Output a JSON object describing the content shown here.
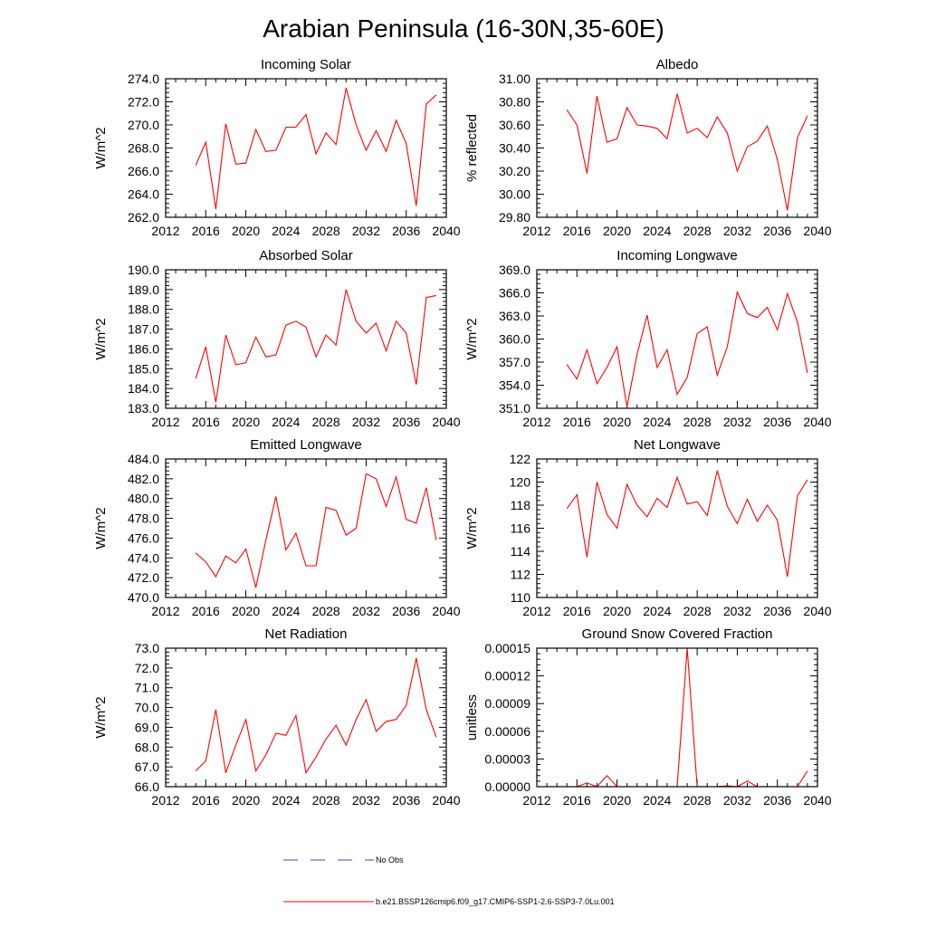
{
  "figure": {
    "title": "Arabian Peninsula (16-30N,35-60E)",
    "legend": [
      {
        "label": "No Obs",
        "color": "#4040c0",
        "dash": "dashed"
      },
      {
        "label": "b.e21.BSSP126cmip6.f09_g17.CMIP6-SSP1-2.6-SSP3-7.0Lu.001",
        "color": "#ff0000",
        "dash": "solid"
      }
    ]
  },
  "chart_data": [
    {
      "type": "line",
      "title": "Incoming Solar",
      "ylabel": "W/m^2",
      "xlim": [
        2012,
        2040
      ],
      "ylim": [
        262,
        274
      ],
      "xticks": [
        "2012",
        "2016",
        "2020",
        "2024",
        "2028",
        "2032",
        "2036",
        "2040"
      ],
      "yticks": [
        "262.0",
        "264.0",
        "266.0",
        "268.0",
        "270.0",
        "272.0",
        "274.0"
      ],
      "x": [
        2015,
        2016,
        2017,
        2018,
        2019,
        2020,
        2021,
        2022,
        2023,
        2024,
        2025,
        2026,
        2027,
        2028,
        2029,
        2030,
        2031,
        2032,
        2033,
        2034,
        2035,
        2036,
        2037,
        2038,
        2039
      ],
      "series": [
        {
          "color": "#ff0000",
          "values": [
            266.5,
            268.5,
            262.7,
            270.1,
            266.6,
            266.7,
            269.6,
            267.7,
            267.8,
            269.8,
            269.8,
            270.9,
            267.5,
            269.3,
            268.3,
            273.2,
            270.0,
            267.8,
            269.5,
            267.7,
            270.4,
            268.4,
            263.0,
            271.8,
            272.6
          ]
        }
      ]
    },
    {
      "type": "line",
      "title": "Albedo",
      "ylabel": "% reflected",
      "xlim": [
        2012,
        2040
      ],
      "ylim": [
        29.8,
        31.0
      ],
      "xticks": [
        "2012",
        "2016",
        "2020",
        "2024",
        "2028",
        "2032",
        "2036",
        "2040"
      ],
      "yticks": [
        "29.80",
        "30.00",
        "30.20",
        "30.40",
        "30.60",
        "30.80",
        "31.00"
      ],
      "x": [
        2015,
        2016,
        2017,
        2018,
        2019,
        2020,
        2021,
        2022,
        2023,
        2024,
        2025,
        2026,
        2027,
        2028,
        2029,
        2030,
        2031,
        2032,
        2033,
        2034,
        2035,
        2036,
        2037,
        2038,
        2039
      ],
      "series": [
        {
          "color": "#ff0000",
          "values": [
            30.73,
            30.6,
            30.18,
            30.85,
            30.45,
            30.48,
            30.75,
            30.6,
            30.59,
            30.57,
            30.48,
            30.87,
            30.53,
            30.57,
            30.49,
            30.67,
            30.53,
            30.2,
            30.41,
            30.46,
            30.59,
            30.3,
            29.86,
            30.49,
            30.68
          ]
        }
      ]
    },
    {
      "type": "line",
      "title": "Absorbed Solar",
      "ylabel": "W/m^2",
      "xlim": [
        2012,
        2040
      ],
      "ylim": [
        183,
        190
      ],
      "xticks": [
        "2012",
        "2016",
        "2020",
        "2024",
        "2028",
        "2032",
        "2036",
        "2040"
      ],
      "yticks": [
        "183.0",
        "184.0",
        "185.0",
        "186.0",
        "187.0",
        "188.0",
        "189.0",
        "190.0"
      ],
      "x": [
        2015,
        2016,
        2017,
        2018,
        2019,
        2020,
        2021,
        2022,
        2023,
        2024,
        2025,
        2026,
        2027,
        2028,
        2029,
        2030,
        2031,
        2032,
        2033,
        2034,
        2035,
        2036,
        2037,
        2038,
        2039
      ],
      "series": [
        {
          "color": "#ff0000",
          "values": [
            184.5,
            186.1,
            183.3,
            186.7,
            185.2,
            185.3,
            186.6,
            185.6,
            185.7,
            187.2,
            187.4,
            187.1,
            185.6,
            186.7,
            186.2,
            189.0,
            187.4,
            186.8,
            187.3,
            185.9,
            187.4,
            186.8,
            184.2,
            188.6,
            188.7
          ]
        }
      ]
    },
    {
      "type": "line",
      "title": "Incoming Longwave",
      "ylabel": "W/m^2",
      "xlim": [
        2012,
        2040
      ],
      "ylim": [
        351,
        369
      ],
      "xticks": [
        "2012",
        "2016",
        "2020",
        "2024",
        "2028",
        "2032",
        "2036",
        "2040"
      ],
      "yticks": [
        "351.0",
        "354.0",
        "357.0",
        "360.0",
        "363.0",
        "366.0",
        "369.0"
      ],
      "x": [
        2015,
        2016,
        2017,
        2018,
        2019,
        2020,
        2021,
        2022,
        2023,
        2024,
        2025,
        2026,
        2027,
        2028,
        2029,
        2030,
        2031,
        2032,
        2033,
        2034,
        2035,
        2036,
        2037,
        2038,
        2039
      ],
      "series": [
        {
          "color": "#ff0000",
          "values": [
            356.7,
            354.8,
            358.6,
            354.2,
            356.3,
            359.0,
            351.2,
            358.0,
            363.1,
            356.3,
            358.6,
            352.8,
            355.0,
            360.7,
            361.6,
            355.3,
            359.0,
            366.1,
            363.3,
            362.8,
            364.1,
            361.2,
            365.9,
            362.2,
            355.6
          ]
        }
      ]
    },
    {
      "type": "line",
      "title": "Emitted Longwave",
      "ylabel": "W/m^2",
      "xlim": [
        2012,
        2040
      ],
      "ylim": [
        470,
        484
      ],
      "xticks": [
        "2012",
        "2016",
        "2020",
        "2024",
        "2028",
        "2032",
        "2036",
        "2040"
      ],
      "yticks": [
        "470.0",
        "472.0",
        "474.0",
        "476.0",
        "478.0",
        "480.0",
        "482.0",
        "484.0"
      ],
      "x": [
        2015,
        2016,
        2017,
        2018,
        2019,
        2020,
        2021,
        2022,
        2023,
        2024,
        2025,
        2026,
        2027,
        2028,
        2029,
        2030,
        2031,
        2032,
        2033,
        2034,
        2035,
        2036,
        2037,
        2038,
        2039
      ],
      "series": [
        {
          "color": "#ff0000",
          "values": [
            474.5,
            473.6,
            472.1,
            474.2,
            473.5,
            474.9,
            471.0,
            475.8,
            480.2,
            474.8,
            476.5,
            473.2,
            473.2,
            479.1,
            478.8,
            476.3,
            477.0,
            482.5,
            482.0,
            479.2,
            482.2,
            477.9,
            477.5,
            481.1,
            475.8
          ]
        }
      ]
    },
    {
      "type": "line",
      "title": "Net Longwave",
      "ylabel": "W/m^2",
      "xlim": [
        2012,
        2040
      ],
      "ylim": [
        110,
        122
      ],
      "xticks": [
        "2012",
        "2016",
        "2020",
        "2024",
        "2028",
        "2032",
        "2036",
        "2040"
      ],
      "yticks": [
        "110",
        "112",
        "114",
        "116",
        "118",
        "120",
        "122"
      ],
      "x": [
        2015,
        2016,
        2017,
        2018,
        2019,
        2020,
        2021,
        2022,
        2023,
        2024,
        2025,
        2026,
        2027,
        2028,
        2029,
        2030,
        2031,
        2032,
        2033,
        2034,
        2035,
        2036,
        2037,
        2038,
        2039
      ],
      "series": [
        {
          "color": "#ff0000",
          "values": [
            117.7,
            118.9,
            113.5,
            120.0,
            117.2,
            116.0,
            119.8,
            118.0,
            117.0,
            118.6,
            117.8,
            120.4,
            118.1,
            118.3,
            117.1,
            121.0,
            117.9,
            116.4,
            118.5,
            116.6,
            118.0,
            116.7,
            111.8,
            118.8,
            120.2
          ]
        }
      ]
    },
    {
      "type": "line",
      "title": "Net Radiation",
      "ylabel": "W/m^2",
      "xlim": [
        2012,
        2040
      ],
      "ylim": [
        66,
        73
      ],
      "xticks": [
        "2012",
        "2016",
        "2020",
        "2024",
        "2028",
        "2032",
        "2036",
        "2040"
      ],
      "yticks": [
        "66.0",
        "67.0",
        "68.0",
        "69.0",
        "70.0",
        "71.0",
        "72.0",
        "73.0"
      ],
      "x": [
        2015,
        2016,
        2017,
        2018,
        2019,
        2020,
        2021,
        2022,
        2023,
        2024,
        2025,
        2026,
        2027,
        2028,
        2029,
        2030,
        2031,
        2032,
        2033,
        2034,
        2035,
        2036,
        2037,
        2038,
        2039
      ],
      "series": [
        {
          "color": "#ff0000",
          "values": [
            66.8,
            67.3,
            69.9,
            66.7,
            68.1,
            69.4,
            66.8,
            67.6,
            68.7,
            68.6,
            69.6,
            66.7,
            67.5,
            68.4,
            69.1,
            68.1,
            69.4,
            70.4,
            68.8,
            69.3,
            69.4,
            70.1,
            72.5,
            69.9,
            68.5
          ]
        }
      ]
    },
    {
      "type": "line",
      "title": "Ground Snow Covered Fraction",
      "ylabel": "unitless",
      "xlim": [
        2012,
        2040
      ],
      "ylim": [
        0,
        0.00015
      ],
      "xticks": [
        "2012",
        "2016",
        "2020",
        "2024",
        "2028",
        "2032",
        "2036",
        "2040"
      ],
      "yticks": [
        "0.00000",
        "0.00003",
        "0.00006",
        "0.00009",
        "0.00012",
        "0.00015"
      ],
      "x": [
        2015,
        2016,
        2017,
        2018,
        2019,
        2020,
        2021,
        2022,
        2023,
        2024,
        2025,
        2026,
        2027,
        2028,
        2029,
        2030,
        2031,
        2032,
        2033,
        2034,
        2035,
        2036,
        2037,
        2038,
        2039
      ],
      "series": [
        {
          "color": "#ff0000",
          "values": [
            0,
            0,
            4e-06,
            0,
            1.2e-05,
            0,
            0,
            0,
            0,
            0,
            0,
            0,
            0.00015,
            0,
            0,
            0,
            1e-06,
            0,
            6e-06,
            0,
            0,
            0,
            0,
            0,
            1.7e-05
          ]
        }
      ]
    }
  ]
}
